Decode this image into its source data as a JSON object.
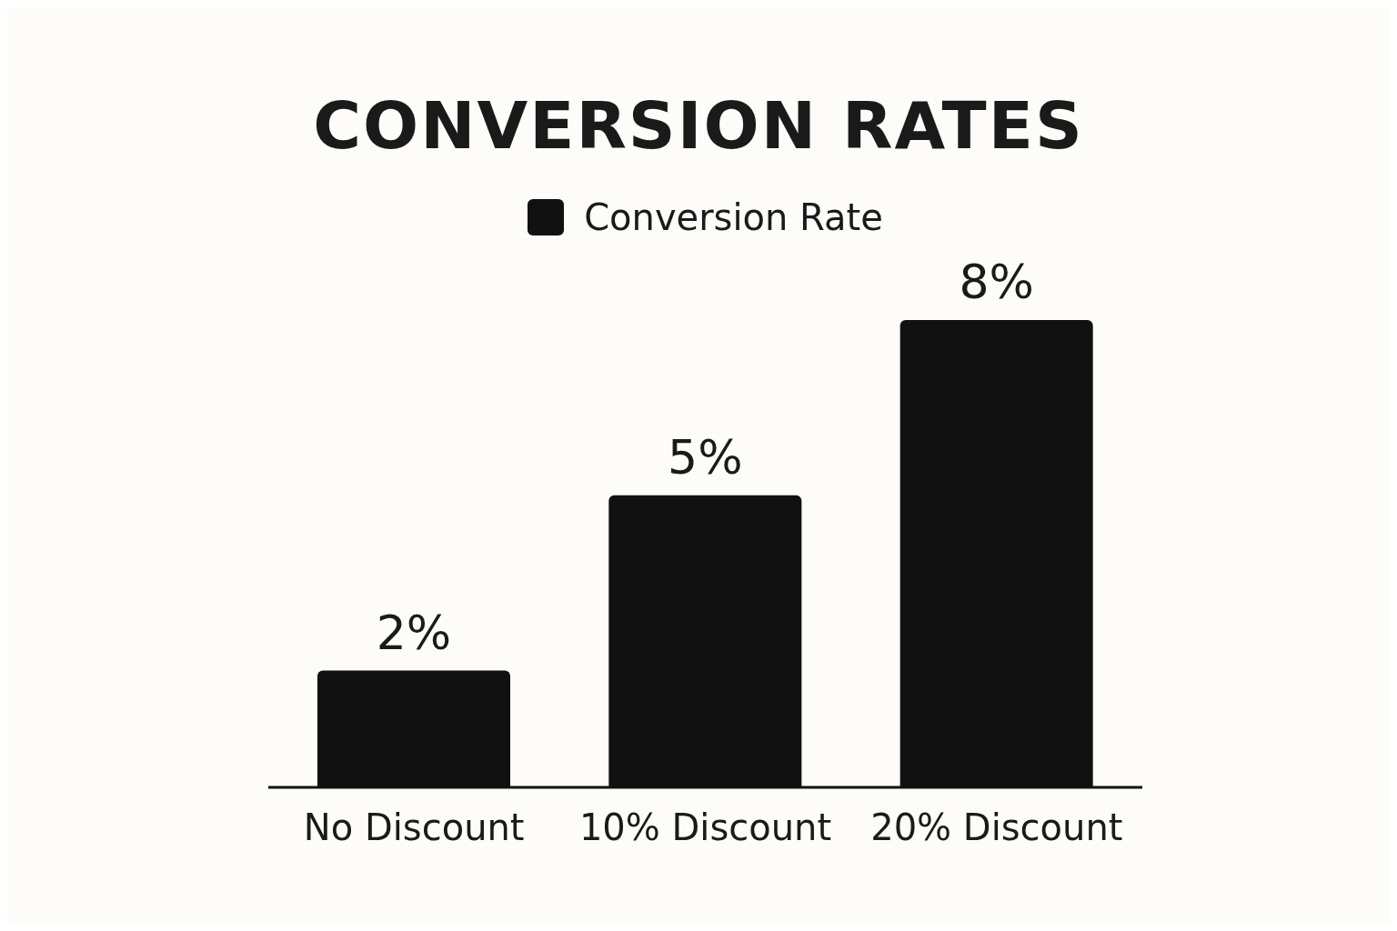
{
  "chart_data": {
    "type": "bar",
    "title": "CONVERSION RATES",
    "categories": [
      "No Discount",
      "10% Discount",
      "20% Discount"
    ],
    "series": [
      {
        "name": "Conversion Rate",
        "color": "#111111",
        "values": [
          2,
          5,
          8
        ],
        "value_labels": [
          "2%",
          "5%",
          "8%"
        ]
      }
    ],
    "legend": "top",
    "grid": false
  }
}
